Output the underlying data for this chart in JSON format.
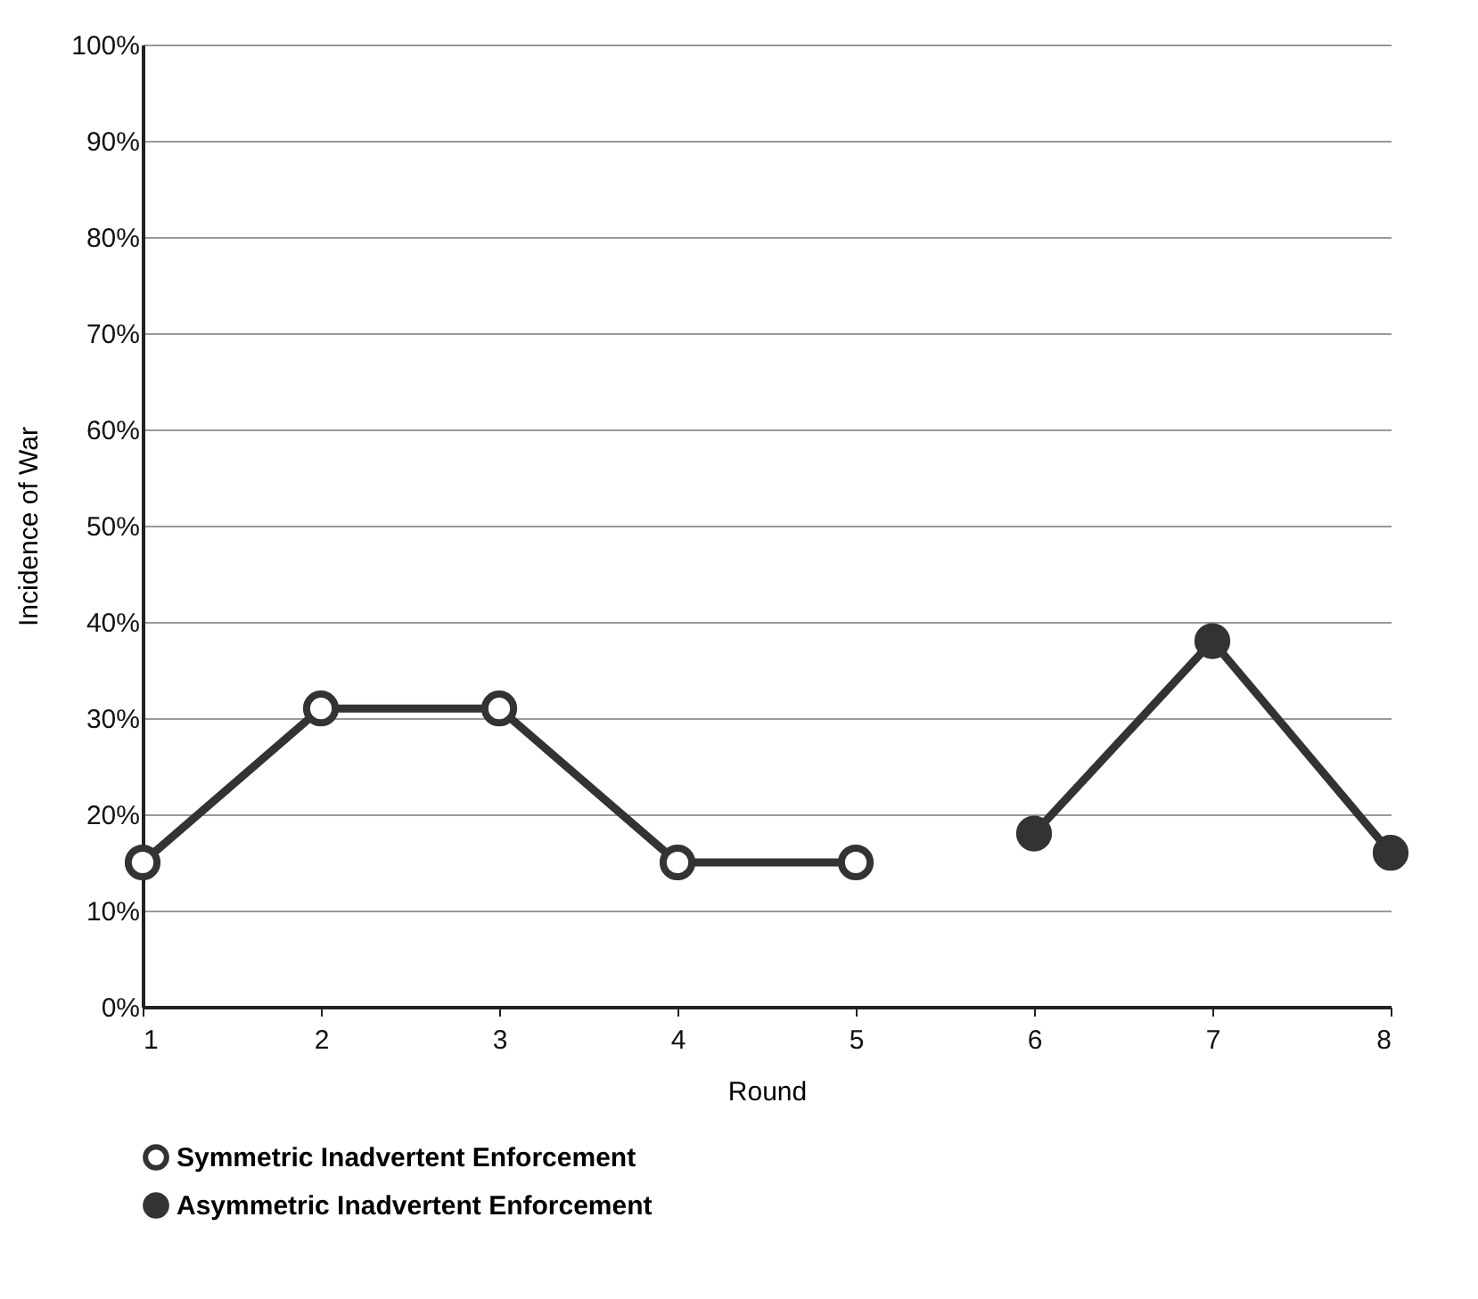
{
  "chart_data": {
    "type": "line",
    "xlabel": "Round",
    "ylabel": "Incidence of War",
    "xlim": [
      1,
      8
    ],
    "xticks": [
      1,
      2,
      3,
      4,
      5,
      6,
      7,
      8
    ],
    "ylim": [
      0,
      100
    ],
    "yticks": [
      {
        "value": 0,
        "label": "0%"
      },
      {
        "value": 10,
        "label": "10%"
      },
      {
        "value": 20,
        "label": "20%"
      },
      {
        "value": 30,
        "label": "30%"
      },
      {
        "value": 40,
        "label": "40%"
      },
      {
        "value": 50,
        "label": "50%"
      },
      {
        "value": 60,
        "label": "60%"
      },
      {
        "value": 70,
        "label": "70%"
      },
      {
        "value": 80,
        "label": "80%"
      },
      {
        "value": 90,
        "label": "90%"
      },
      {
        "value": 100,
        "label": "100%"
      }
    ],
    "grid": "y",
    "legend": "bottom",
    "marker": "circle",
    "line_style": "solid",
    "series": [
      {
        "name": "Symmetric Inadvertent Enforcement",
        "color": "#333333",
        "x": [
          1,
          2,
          3,
          4,
          5
        ],
        "values": [
          15,
          31,
          31,
          15,
          15
        ]
      },
      {
        "name": "Asymmetric Inadvertent Enforcement",
        "color": "#333333",
        "x": [
          6,
          7,
          8
        ],
        "values": [
          18,
          38,
          16
        ]
      }
    ]
  }
}
